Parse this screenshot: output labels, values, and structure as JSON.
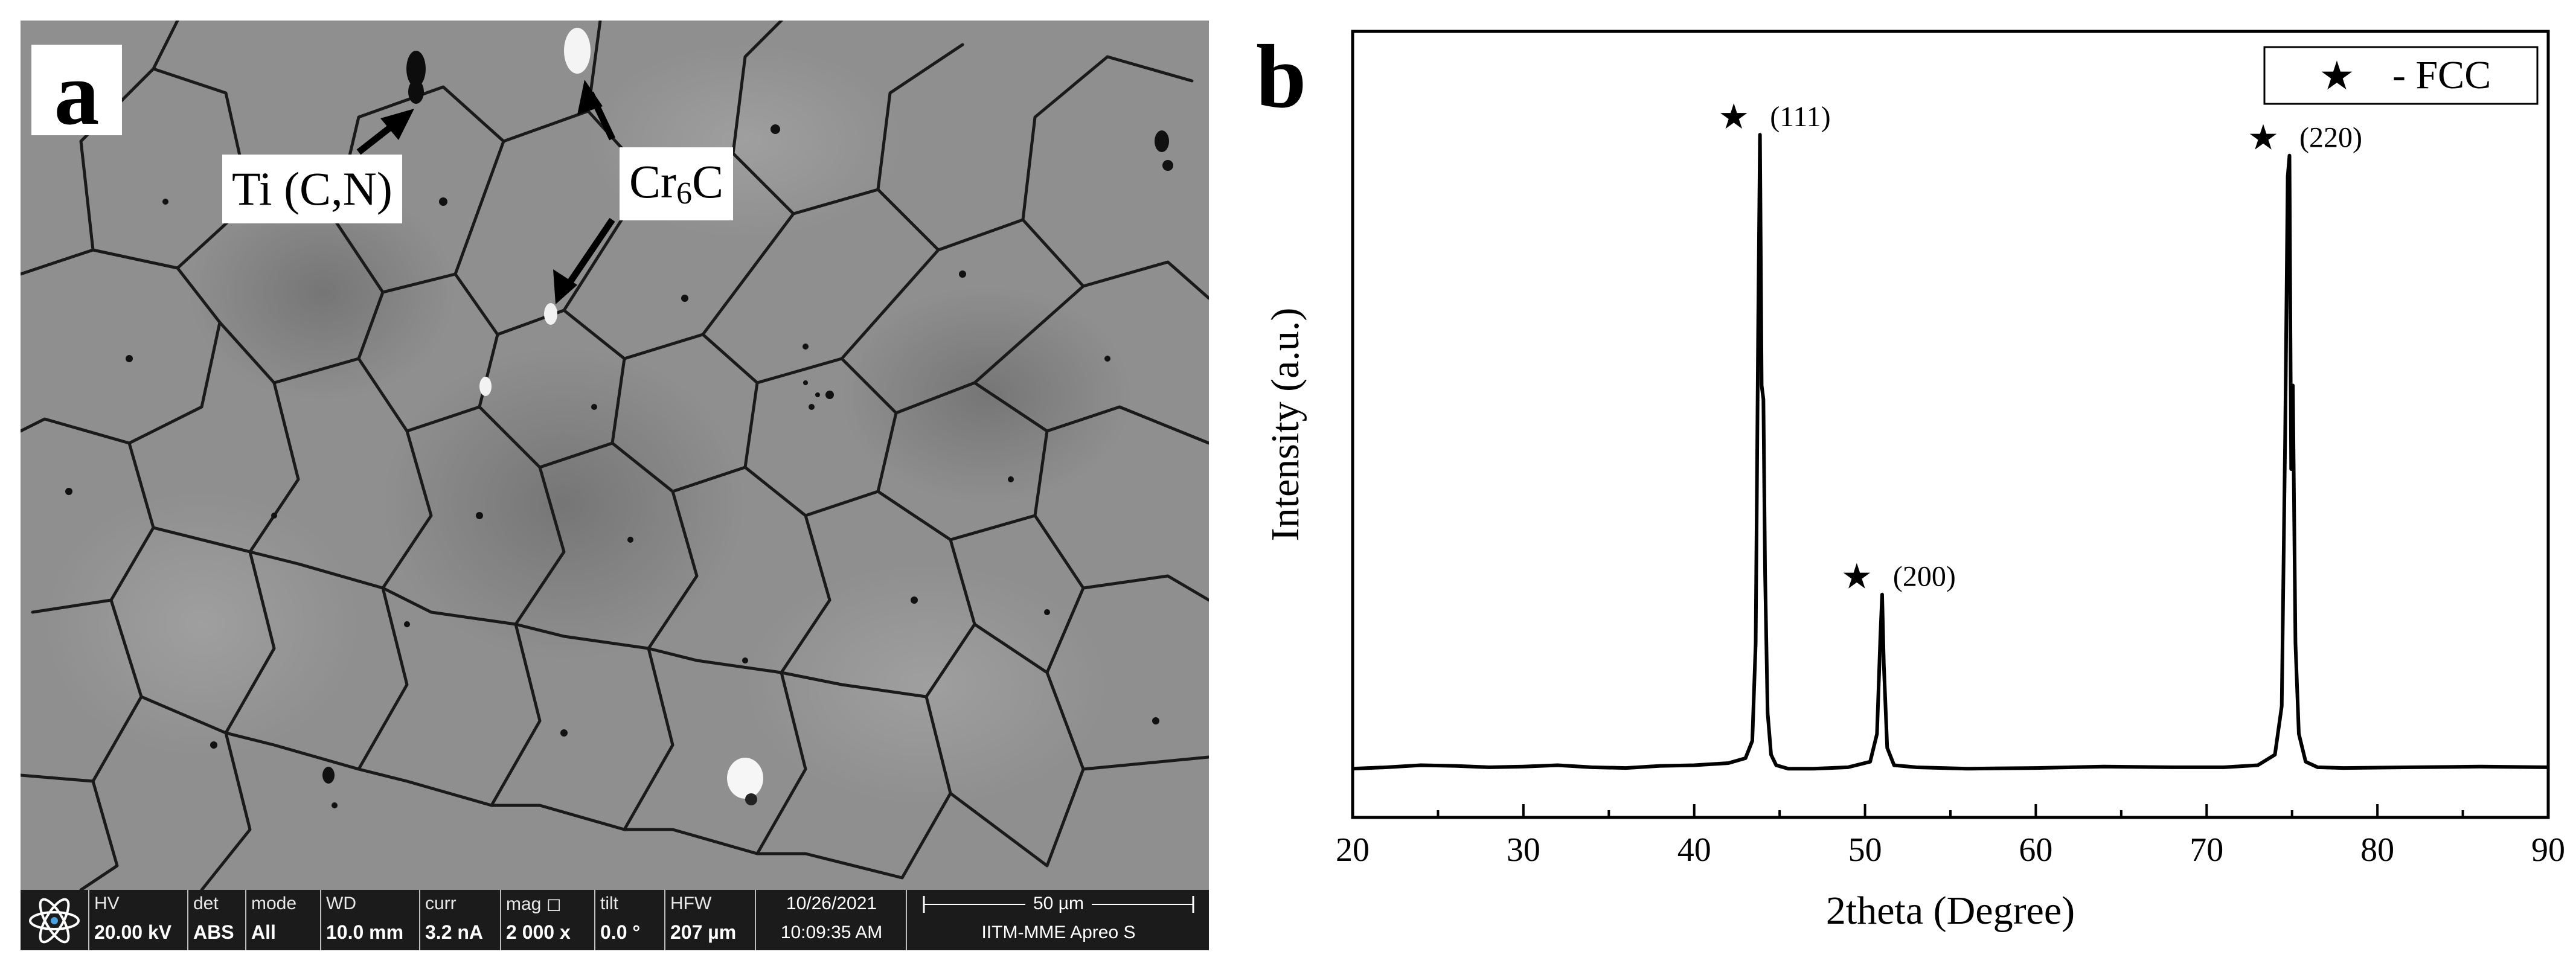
{
  "panel_a": {
    "letter": "a",
    "callouts": {
      "ti": "Ti (C,N)",
      "cr_main": "Cr",
      "cr_sub": "6",
      "cr_tail": "C"
    },
    "databar": {
      "hv": {
        "label": "HV",
        "value": "20.00 kV"
      },
      "det": {
        "label": "det",
        "value": "ABS"
      },
      "mode": {
        "label": "mode",
        "value": "All"
      },
      "wd": {
        "label": "WD",
        "value": "10.0 mm"
      },
      "curr": {
        "label": "curr",
        "value": "3.2 nA"
      },
      "mag": {
        "label": "mag ◻",
        "value": "2 000 x"
      },
      "tilt": {
        "label": "tilt",
        "value": "0.0 °"
      },
      "hfw": {
        "label": "HFW",
        "value": "207 µm"
      },
      "date": "10/26/2021",
      "time": "10:09:35 AM",
      "scale_label": "50 µm",
      "instrument": "IITM-MME Apreo S"
    }
  },
  "panel_b": {
    "letter": "b"
  },
  "chart_data": {
    "type": "line",
    "xlabel": "2theta (Degree)",
    "ylabel": "Intensity (a.u.)",
    "xlim": [
      20,
      90
    ],
    "ylim": [
      0,
      1
    ],
    "x_ticks": [
      20,
      30,
      40,
      50,
      60,
      70,
      80,
      90
    ],
    "y_ticks_shown": false,
    "legend": {
      "position": "top-right",
      "marker": "★",
      "text": "- FCC",
      "marker_color": "#e3101b"
    },
    "series": [
      {
        "color": "#000000",
        "x": [
          20,
          22,
          24,
          26,
          28,
          30,
          32,
          34,
          36,
          38,
          40,
          42,
          43.0,
          43.4,
          43.6,
          43.75,
          43.85,
          43.95,
          44.05,
          44.15,
          44.3,
          44.5,
          44.8,
          45.5,
          47,
          49,
          50.3,
          50.7,
          50.9,
          51.0,
          51.1,
          51.3,
          51.7,
          53,
          56,
          60,
          64,
          68,
          71,
          73,
          74.0,
          74.4,
          74.6,
          74.75,
          74.85,
          74.95,
          75.05,
          75.2,
          75.4,
          75.8,
          76.5,
          78,
          82,
          86,
          90
        ],
        "y": [
          0.07,
          0.072,
          0.075,
          0.074,
          0.072,
          0.073,
          0.075,
          0.072,
          0.071,
          0.074,
          0.075,
          0.078,
          0.085,
          0.11,
          0.25,
          0.72,
          0.98,
          0.62,
          0.6,
          0.35,
          0.15,
          0.09,
          0.075,
          0.07,
          0.07,
          0.072,
          0.08,
          0.12,
          0.26,
          0.32,
          0.22,
          0.1,
          0.075,
          0.072,
          0.07,
          0.071,
          0.073,
          0.072,
          0.072,
          0.075,
          0.09,
          0.16,
          0.55,
          0.92,
          0.95,
          0.5,
          0.62,
          0.25,
          0.12,
          0.08,
          0.072,
          0.071,
          0.072,
          0.073,
          0.072
        ]
      }
    ],
    "annotations": [
      {
        "text": "(111)",
        "x": 43.8,
        "y": 0.98
      },
      {
        "text": "(200)",
        "x": 51.0,
        "y": 0.32
      },
      {
        "text": "(220)",
        "x": 74.8,
        "y": 0.95
      }
    ]
  }
}
